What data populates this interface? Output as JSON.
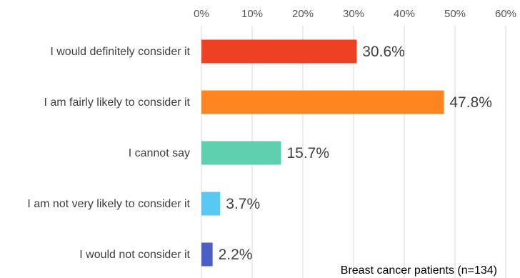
{
  "chart_data": {
    "type": "bar",
    "orientation": "horizontal",
    "categories": [
      "I would definitely consider it",
      "I am fairly likely to consider it",
      "I cannot say",
      "I am not very likely to consider it",
      "I would not consider it"
    ],
    "values": [
      30.6,
      47.8,
      15.7,
      3.7,
      2.2
    ],
    "value_labels": [
      "30.6%",
      "47.8%",
      "15.7%",
      "3.7%",
      "2.2%"
    ],
    "colors": [
      "#ee4124",
      "#ff8521",
      "#5ecfaf",
      "#5bc8f3",
      "#4a5fc1"
    ],
    "xlim": [
      0,
      60
    ],
    "x_ticks": [
      "0%",
      "10%",
      "20%",
      "30%",
      "40%",
      "50%",
      "60%"
    ],
    "x_axis_position": "top",
    "grid": true,
    "annotation": "Breast cancer patients (n=134)"
  }
}
